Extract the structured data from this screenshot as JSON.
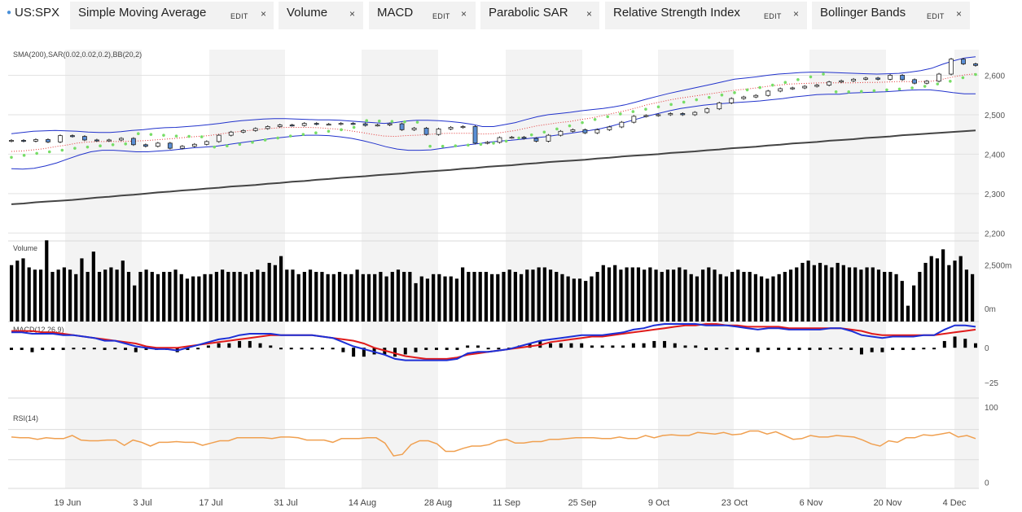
{
  "header": {
    "symbol": "US:SPX",
    "tabs": [
      {
        "label": "Simple Moving Average",
        "edit": "EDIT",
        "close": "×"
      },
      {
        "label": "Volume",
        "edit": "",
        "close": "×"
      },
      {
        "label": "MACD",
        "edit": "EDIT",
        "close": "×"
      },
      {
        "label": "Parabolic SAR",
        "edit": "",
        "close": "×"
      },
      {
        "label": "Relative Strength Index",
        "edit": "EDIT",
        "close": "×"
      },
      {
        "label": "Bollinger Bands",
        "edit": "EDIT",
        "close": "×"
      }
    ]
  },
  "colors": {
    "sma": "#444444",
    "bollinger": "#2233cc",
    "sar": "#77dd66",
    "bb_mid": "#e23333",
    "candle_up": "#ffffff",
    "candle_down": "#5b8fd6",
    "volume": "#000000",
    "macd": "#1c2fd6",
    "signal": "#e01b1b",
    "histogram": "#000000",
    "rsi": "#f0a050",
    "band": "#f3f3f3"
  },
  "chart_data": [
    {
      "type": "candlestick",
      "panel": "price",
      "label": "SMA(200),SAR(0.02,0.02,0.2),BB(20,2)",
      "y_ticks": [
        "2,600",
        "2,500",
        "2,400",
        "2,300",
        "2,200"
      ],
      "y_tick_values": [
        2600,
        2500,
        2400,
        2300,
        2200
      ],
      "ylim": [
        2180,
        2665
      ],
      "x_labels": [
        "19 Jun",
        "3 Jul",
        "17 Jul",
        "31 Jul",
        "14 Aug",
        "28 Aug",
        "11 Sep",
        "25 Sep",
        "9 Oct",
        "23 Oct",
        "6 Nov",
        "20 Nov",
        "4 Dec"
      ],
      "series": [
        {
          "name": "SMA(200)",
          "values": [
            2273,
            2275,
            2278,
            2280,
            2282,
            2284,
            2287,
            2290,
            2292,
            2295,
            2297,
            2300,
            2303,
            2305,
            2308,
            2310,
            2313,
            2315,
            2318,
            2320,
            2322,
            2325,
            2327,
            2330,
            2332,
            2335,
            2337,
            2340,
            2342,
            2344,
            2347,
            2349,
            2351,
            2354,
            2356,
            2358,
            2360,
            2363,
            2365,
            2368,
            2370,
            2372,
            2375,
            2377,
            2380,
            2382,
            2384,
            2386,
            2389,
            2391,
            2394,
            2396,
            2398,
            2400,
            2403,
            2405,
            2407,
            2410,
            2412,
            2415,
            2417,
            2419,
            2422,
            2424,
            2427,
            2429,
            2431,
            2434,
            2436,
            2438,
            2441,
            2443,
            2445,
            2448,
            2450,
            2452,
            2454,
            2456,
            2458,
            2460
          ]
        },
        {
          "name": "Close",
          "values": [
            2435,
            2433,
            2437,
            2431,
            2447,
            2445,
            2436,
            2434,
            2436,
            2440,
            2424,
            2420,
            2428,
            2415,
            2420,
            2425,
            2432,
            2448,
            2456,
            2460,
            2465,
            2470,
            2474,
            2473,
            2478,
            2476,
            2476,
            2478,
            2477,
            2473,
            2474,
            2477,
            2462,
            2466,
            2450,
            2464,
            2468,
            2470,
            2428,
            2430,
            2442,
            2443,
            2440,
            2433,
            2448,
            2458,
            2462,
            2454,
            2462,
            2469,
            2481,
            2496,
            2498,
            2500,
            2503,
            2500,
            2506,
            2515,
            2530,
            2541,
            2545,
            2549,
            2560,
            2566,
            2568,
            2572,
            2575,
            2583,
            2586,
            2590,
            2593,
            2590,
            2600,
            2589,
            2580,
            2585,
            2603,
            2641,
            2629,
            2625
          ]
        },
        {
          "name": "BB Upper",
          "values": [
            2452,
            2455,
            2458,
            2459,
            2460,
            2459,
            2458,
            2456,
            2455,
            2455,
            2457,
            2460,
            2462,
            2465,
            2467,
            2468,
            2470,
            2472,
            2475,
            2478,
            2482,
            2485,
            2487,
            2489,
            2490,
            2490,
            2489,
            2488,
            2487,
            2487,
            2486,
            2484,
            2482,
            2480,
            2478,
            2480,
            2484,
            2486,
            2486,
            2485,
            2483,
            2480,
            2476,
            2470,
            2470,
            2475,
            2480,
            2488,
            2495,
            2500,
            2503,
            2506,
            2510,
            2513,
            2516,
            2520,
            2525,
            2532,
            2540,
            2547,
            2554,
            2560,
            2566,
            2572,
            2578,
            2584,
            2590,
            2593,
            2596,
            2600,
            2603,
            2605,
            2607,
            2608,
            2608,
            2607,
            2606,
            2605,
            2604,
            2603,
            2604,
            2605,
            2608,
            2612,
            2618,
            2628,
            2637,
            2644,
            2647
          ]
        },
        {
          "name": "BB Lower",
          "values": [
            2363,
            2362,
            2364,
            2370,
            2378,
            2388,
            2398,
            2406,
            2410,
            2410,
            2408,
            2406,
            2406,
            2408,
            2410,
            2413,
            2416,
            2418,
            2420,
            2424,
            2428,
            2432,
            2436,
            2440,
            2443,
            2446,
            2448,
            2448,
            2447,
            2444,
            2440,
            2434,
            2427,
            2419,
            2413,
            2410,
            2410,
            2411,
            2415,
            2419,
            2423,
            2426,
            2430,
            2433,
            2435,
            2438,
            2441,
            2444,
            2448,
            2452,
            2456,
            2460,
            2465,
            2472,
            2480,
            2488,
            2496,
            2503,
            2510,
            2516,
            2520,
            2524,
            2527,
            2529,
            2531,
            2533,
            2535,
            2538,
            2541,
            2545,
            2548,
            2551,
            2552,
            2552,
            2555,
            2556,
            2557,
            2558,
            2560,
            2562,
            2563,
            2563,
            2560,
            2556,
            2553,
            2553
          ]
        },
        {
          "name": "BB Middle",
          "values": [
            2407,
            2408,
            2411,
            2414,
            2419,
            2423,
            2428,
            2431,
            2432,
            2432,
            2432,
            2433,
            2434,
            2436,
            2438,
            2440,
            2443,
            2445,
            2447,
            2451,
            2455,
            2458,
            2461,
            2464,
            2466,
            2468,
            2468,
            2468,
            2467,
            2465,
            2463,
            2459,
            2455,
            2450,
            2446,
            2445,
            2447,
            2448,
            2450,
            2452,
            2453,
            2453,
            2453,
            2451,
            2452,
            2456,
            2460,
            2466,
            2472,
            2476,
            2480,
            2483,
            2488,
            2492,
            2498,
            2504,
            2510,
            2517,
            2525,
            2531,
            2537,
            2542,
            2546,
            2550,
            2554,
            2558,
            2562,
            2565,
            2568,
            2572,
            2575,
            2578,
            2579,
            2580,
            2581,
            2581,
            2581,
            2581,
            2582,
            2582,
            2583,
            2584,
            2584,
            2584,
            2585,
            2590,
            2596,
            2601,
            2604
          ]
        },
        {
          "name": "Parabolic SAR",
          "values": [
            2392,
            2397,
            2402,
            2406,
            2410,
            2415,
            2418,
            2421,
            2424,
            2426,
            2452,
            2450,
            2448,
            2446,
            2445,
            2444,
            2418,
            2421,
            2425,
            2430,
            2436,
            2441,
            2446,
            2450,
            2454,
            2458,
            2462,
            2468,
            2485,
            2484,
            2483,
            2482,
            2481,
            2420,
            2420,
            2421,
            2423,
            2425,
            2428,
            2433,
            2441,
            2449,
            2456,
            2464,
            2472,
            2480,
            2488,
            2495,
            2502,
            2508,
            2514,
            2520,
            2526,
            2532,
            2538,
            2544,
            2550,
            2556,
            2563,
            2569,
            2575,
            2582,
            2589,
            2596,
            2603,
            2558,
            2558,
            2559,
            2561,
            2563,
            2565,
            2568,
            2572,
            2578,
            2585,
            2594,
            2602
          ]
        }
      ]
    },
    {
      "type": "bar",
      "panel": "volume",
      "label": "Volume",
      "y_ticks": [
        "2,500m",
        "0m"
      ],
      "y_tick_values": [
        2500,
        0
      ],
      "ylim": [
        0,
        3500
      ],
      "values": [
        2500,
        2700,
        2800,
        2400,
        2300,
        2300,
        3600,
        2200,
        2300,
        2400,
        2300,
        2100,
        2800,
        2200,
        3100,
        2200,
        2300,
        2400,
        2300,
        2700,
        2200,
        1600,
        2200,
        2300,
        2200,
        2100,
        2200,
        2200,
        2300,
        2100,
        1900,
        2000,
        2000,
        2100,
        2100,
        2200,
        2300,
        2200,
        2200,
        2200,
        2100,
        2200,
        2300,
        2200,
        2600,
        2500,
        2900,
        2300,
        2300,
        2100,
        2200,
        2300,
        2200,
        2200,
        2100,
        2100,
        2200,
        2100,
        2100,
        2300,
        2100,
        2100,
        2100,
        2200,
        2000,
        2200,
        2300,
        2200,
        2200,
        1700,
        2000,
        1900,
        2100,
        2100,
        2000,
        2000,
        1900,
        2400,
        2200,
        2200,
        2200,
        2200,
        2100,
        2100,
        2200,
        2300,
        2200,
        2100,
        2300,
        2300,
        2400,
        2400,
        2300,
        2200,
        2100,
        2000,
        1900,
        1900,
        1800,
        2000,
        2200,
        2500,
        2400,
        2500,
        2300,
        2400,
        2400,
        2400,
        2300,
        2400,
        2300,
        2200,
        2300,
        2300,
        2400,
        2300,
        2100,
        2000,
        2300,
        2400,
        2300,
        2100,
        2000,
        2200,
        2300,
        2200,
        2200,
        2100,
        2000,
        1900,
        2000,
        2100,
        2200,
        2300,
        2400,
        2600,
        2700,
        2500,
        2600,
        2500,
        2400,
        2600,
        2500,
        2400,
        2400,
        2300,
        2400,
        2400,
        2300,
        2200,
        2200,
        2100,
        1800,
        700,
        1600,
        2200,
        2600,
        2900,
        2800,
        3200,
        2500,
        2700,
        2900,
        2300,
        2100
      ]
    },
    {
      "type": "line",
      "panel": "macd",
      "label": "MACD(12,26,9)",
      "y_ticks": [
        "0",
        "−25"
      ],
      "y_tick_values": [
        0,
        -25
      ],
      "ylim": [
        -36,
        17
      ],
      "series": [
        {
          "name": "MACD",
          "values": [
            11,
            11,
            10,
            10,
            10,
            9,
            9,
            8,
            7,
            5,
            5,
            3,
            1,
            0,
            -1,
            -1,
            -2,
            0,
            2,
            4,
            6,
            7,
            9,
            10,
            10,
            10,
            9,
            9,
            9,
            9,
            8,
            7,
            4,
            1,
            -1,
            -3,
            -5,
            -8,
            -9,
            -9,
            -9,
            -9,
            -9,
            -8,
            -4,
            -3,
            -3,
            -2,
            -1,
            1,
            3,
            5,
            6,
            7,
            8,
            9,
            9,
            9,
            10,
            11,
            13,
            14,
            16,
            17,
            17,
            17,
            17,
            16,
            16,
            16,
            15,
            14,
            13,
            14,
            14,
            13,
            13,
            13,
            13,
            14,
            14,
            12,
            9,
            8,
            7,
            8,
            8,
            8,
            9,
            9,
            13,
            16,
            16,
            15
          ]
        },
        {
          "name": "Signal",
          "values": [
            12,
            12,
            12,
            11,
            11,
            10,
            9,
            8,
            7,
            6,
            5,
            4,
            3,
            1,
            0,
            0,
            0,
            1,
            2,
            3,
            4,
            5,
            6,
            7,
            8,
            9,
            9,
            9,
            9,
            9,
            8,
            7,
            6,
            5,
            3,
            0,
            -2,
            -4,
            -6,
            -7,
            -8,
            -8,
            -8,
            -7,
            -5,
            -4,
            -3,
            -2,
            -1,
            0,
            1,
            2,
            4,
            5,
            6,
            7,
            8,
            8,
            9,
            10,
            11,
            12,
            13,
            14,
            15,
            16,
            16,
            17,
            17,
            16,
            16,
            15,
            15,
            15,
            15,
            14,
            14,
            14,
            14,
            14,
            14,
            13,
            12,
            10,
            9,
            9,
            9,
            9,
            9,
            9,
            10,
            11,
            12,
            13
          ]
        }
      ]
    },
    {
      "type": "line",
      "panel": "rsi",
      "label": "RSI(14)",
      "y_ticks": [
        "100",
        "0"
      ],
      "y_tick_values": [
        100,
        0
      ],
      "ylim": [
        -8,
        103
      ],
      "series": [
        {
          "name": "RSI",
          "values": [
            60,
            59,
            59,
            57,
            59,
            58,
            58,
            62,
            56,
            55,
            55,
            56,
            56,
            49,
            56,
            53,
            48,
            53,
            53,
            54,
            53,
            53,
            49,
            52,
            55,
            55,
            59,
            59,
            59,
            59,
            58,
            60,
            60,
            59,
            56,
            56,
            56,
            53,
            58,
            58,
            58,
            59,
            59,
            52,
            35,
            37,
            50,
            55,
            55,
            51,
            41,
            41,
            45,
            48,
            48,
            50,
            55,
            57,
            52,
            52,
            54,
            54,
            57,
            57,
            58,
            59,
            59,
            59,
            58,
            58,
            60,
            58,
            58,
            62,
            59,
            62,
            63,
            62,
            62,
            66,
            65,
            64,
            66,
            63,
            64,
            68,
            68,
            64,
            67,
            62,
            57,
            58,
            62,
            60,
            60,
            62,
            61,
            60,
            56,
            51,
            48,
            55,
            53,
            59,
            59,
            63,
            62,
            64,
            66,
            60,
            62,
            58
          ]
        }
      ]
    }
  ]
}
